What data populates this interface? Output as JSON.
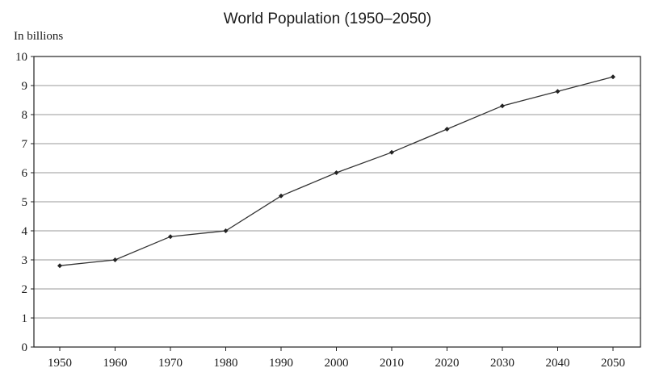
{
  "chart_data": {
    "type": "line",
    "title": "World Population (1950–2050)",
    "xlabel": "",
    "ylabel": "In billions",
    "x": [
      1950,
      1960,
      1970,
      1980,
      1990,
      2000,
      2010,
      2020,
      2030,
      2040,
      2050
    ],
    "series": [
      {
        "values": [
          2.8,
          3.0,
          3.8,
          4.0,
          5.2,
          6.0,
          6.7,
          7.5,
          8.3,
          8.8,
          9.3
        ]
      }
    ],
    "ylim": [
      0,
      10
    ],
    "yticks": [
      0,
      1,
      2,
      3,
      4,
      5,
      6,
      7,
      8,
      9,
      10
    ],
    "xticks": [
      1950,
      1960,
      1970,
      1980,
      1990,
      2000,
      2010,
      2020,
      2030,
      2040,
      2050
    ],
    "grid": "horizontal",
    "line_color": "#333333",
    "marker_color": "#222222"
  }
}
